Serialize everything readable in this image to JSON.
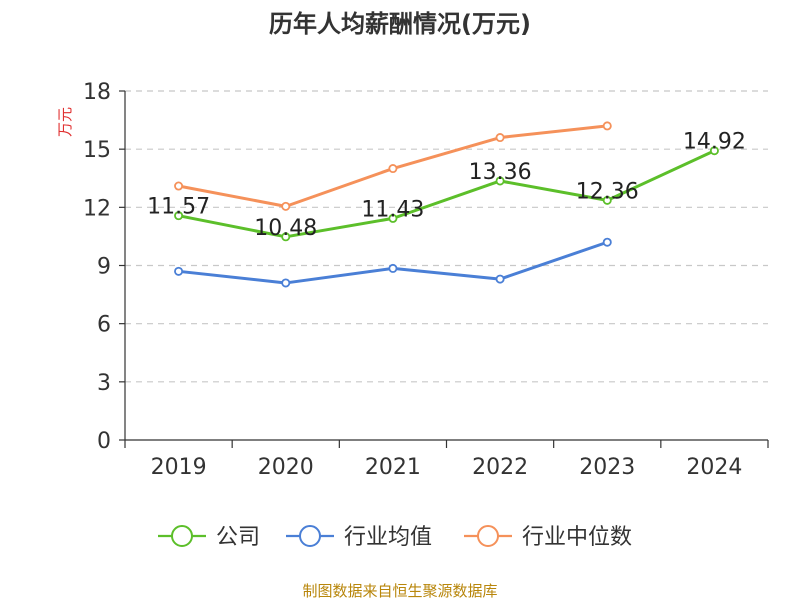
{
  "chart_data": {
    "type": "line",
    "title": "历年人均薪酬情况(万元)",
    "ylabel": "万元",
    "xlabel": "",
    "categories": [
      "2019",
      "2020",
      "2021",
      "2022",
      "2023",
      "2024"
    ],
    "ylim": [
      0,
      18
    ],
    "yticks": [
      0,
      3,
      6,
      9,
      12,
      15,
      18
    ],
    "grid": true,
    "legend_position": "bottom",
    "series": [
      {
        "name": "公司",
        "color": "#5cbf2a",
        "show_labels": true,
        "values": [
          11.57,
          10.48,
          11.43,
          13.36,
          12.36,
          14.92
        ],
        "labels": [
          "11.57",
          "10.48",
          "11.43",
          "13.36",
          "12.36",
          "14.92"
        ]
      },
      {
        "name": "行业均值",
        "color": "#4a7fd6",
        "show_labels": false,
        "values": [
          8.7,
          8.1,
          8.85,
          8.3,
          10.2,
          null
        ]
      },
      {
        "name": "行业中位数",
        "color": "#f5915a",
        "show_labels": false,
        "values": [
          13.1,
          12.05,
          14.0,
          15.6,
          16.2,
          null
        ]
      }
    ],
    "source": "制图数据来自恒生聚源数据库",
    "source_color": "#b8860b",
    "ylabel_color": "#e03030"
  }
}
